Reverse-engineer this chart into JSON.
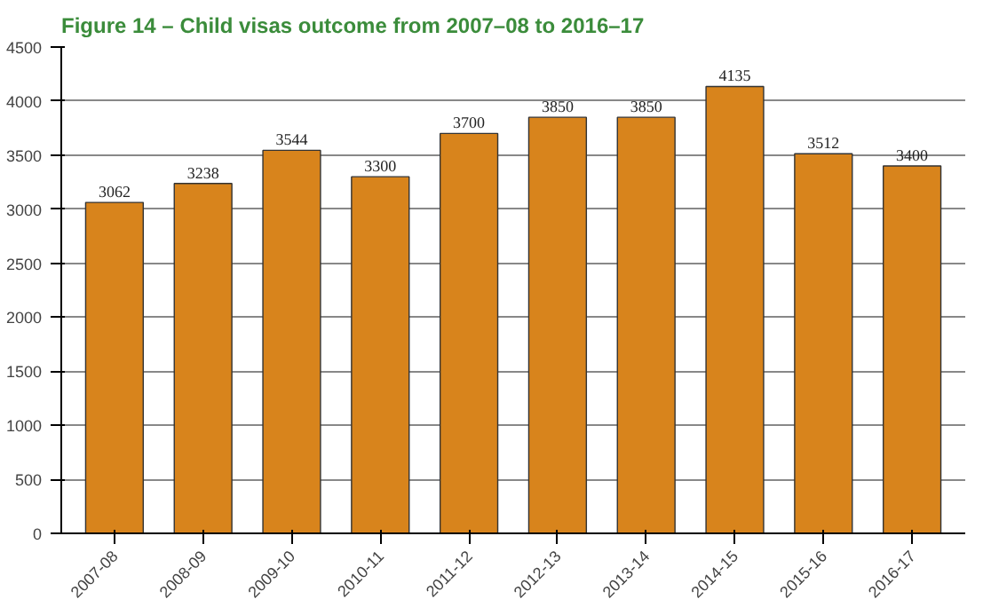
{
  "chart_data": {
    "type": "bar",
    "title": "Figure 14 – Child visas outcome from 2007–08 to 2016–17",
    "categories": [
      "2007-08",
      "2008-09",
      "2009-10",
      "2010-11",
      "2011-12",
      "2012-13",
      "2013-14",
      "2014-15",
      "2015-16",
      "2016-17"
    ],
    "values": [
      3062,
      3238,
      3544,
      3300,
      3700,
      3850,
      3850,
      4135,
      3512,
      3400
    ],
    "color": "#d8841c",
    "ylim": [
      0,
      4500
    ],
    "yticks": [
      0,
      500,
      1000,
      1500,
      2000,
      2500,
      3000,
      3500,
      4000,
      4500
    ],
    "grid": "y",
    "data_labels": true
  }
}
